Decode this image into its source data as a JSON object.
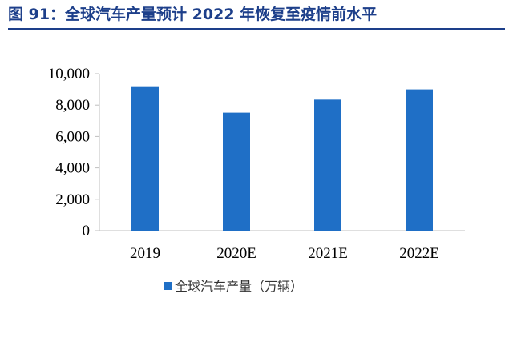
{
  "figure": {
    "title": "图 91：全球汽车产量预计 2022 年恢复至疫情前水平"
  },
  "chart_data": {
    "type": "bar",
    "title": "",
    "xlabel": "",
    "ylabel": "",
    "categories": [
      "2019",
      "2020E",
      "2021E",
      "2022E"
    ],
    "series": [
      {
        "name": "全球汽车产量（万辆）",
        "values": [
          9200,
          7520,
          8350,
          9000
        ],
        "color": "#1f6fc6"
      }
    ],
    "ylim": [
      0,
      10000
    ],
    "yticks": [
      0,
      2000,
      4000,
      6000,
      8000,
      10000
    ],
    "ytick_labels": [
      "0",
      "2,000",
      "4,000",
      "6,000",
      "8,000",
      "10,000"
    ],
    "grid": false,
    "legend_position": "bottom"
  }
}
